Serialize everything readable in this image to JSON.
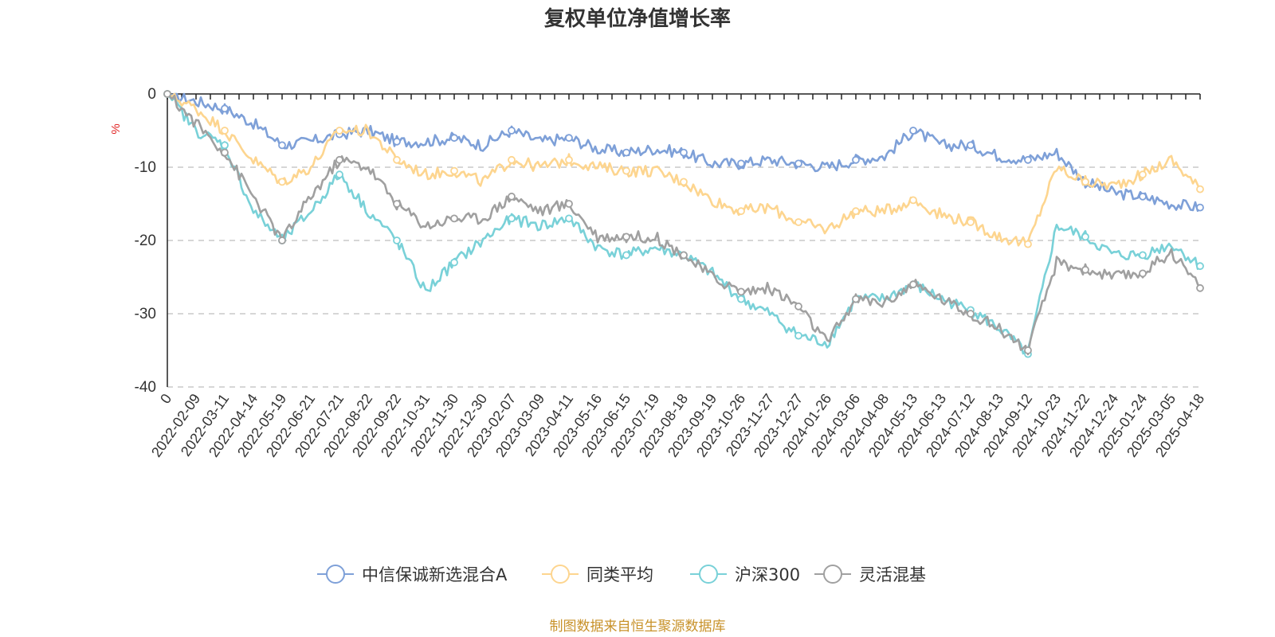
{
  "chart_data": {
    "type": "line",
    "title": "复权单位净值增长率",
    "ylabel": "%",
    "xlabel": "",
    "ylim": [
      -40,
      0
    ],
    "yticks": [
      0,
      -10,
      -20,
      -30,
      -40
    ],
    "grid": true,
    "legend_position": "bottom-center",
    "categories": [
      "0",
      "2022-02-09",
      "2022-03-11",
      "2022-04-14",
      "2022-05-19",
      "2022-06-21",
      "2022-07-21",
      "2022-08-22",
      "2022-09-22",
      "2022-10-31",
      "2022-11-30",
      "2022-12-30",
      "2023-02-07",
      "2023-03-09",
      "2023-04-11",
      "2023-05-16",
      "2023-06-15",
      "2023-07-19",
      "2023-08-18",
      "2023-09-19",
      "2023-10-26",
      "2023-11-27",
      "2023-12-27",
      "2024-01-26",
      "2024-03-06",
      "2024-04-08",
      "2024-05-13",
      "2024-06-13",
      "2024-07-12",
      "2024-08-13",
      "2024-09-12",
      "2024-10-23",
      "2024-11-22",
      "2024-12-24",
      "2025-01-24",
      "2025-03-05",
      "2025-04-18"
    ],
    "series": [
      {
        "name": "中信保诚新选混合A",
        "color": "#7ea0d8",
        "values": [
          0,
          -1,
          -2,
          -4,
          -7,
          -6.5,
          -5.5,
          -5,
          -6.5,
          -6.5,
          -6,
          -7,
          -5,
          -6.5,
          -6,
          -7.5,
          -8,
          -7.5,
          -8,
          -9.5,
          -9.5,
          -9,
          -9.5,
          -10,
          -9,
          -8.5,
          -5,
          -7,
          -7,
          -8.5,
          -9,
          -8,
          -12,
          -13.5,
          -14,
          -15,
          -15.5
        ]
      },
      {
        "name": "同类平均",
        "color": "#fdd58f",
        "values": [
          0,
          -2,
          -5,
          -9,
          -12,
          -10,
          -5,
          -5,
          -9,
          -11,
          -10.5,
          -12,
          -9,
          -10,
          -9,
          -10,
          -10.5,
          -10.5,
          -12,
          -14.5,
          -16,
          -15.5,
          -17.5,
          -18.5,
          -16,
          -16,
          -14.5,
          -16.5,
          -17.5,
          -19.5,
          -20.5,
          -10,
          -12,
          -12.5,
          -11,
          -9,
          -13
        ]
      },
      {
        "name": "沪深300",
        "color": "#79d1d8",
        "values": [
          0,
          -5,
          -7,
          -16,
          -20,
          -16,
          -11,
          -16,
          -20,
          -27,
          -23,
          -20,
          -17,
          -18,
          -17,
          -21,
          -22,
          -21,
          -22,
          -24.5,
          -28,
          -30,
          -33,
          -34,
          -28,
          -28,
          -26,
          -28,
          -29.5,
          -32,
          -35.5,
          -18,
          -19.5,
          -22,
          -22,
          -20.5,
          -23.5
        ]
      },
      {
        "name": "灵活混基",
        "color": "#a0a0a0",
        "values": [
          0,
          -4,
          -8,
          -14,
          -20,
          -14,
          -9,
          -10,
          -15,
          -18,
          -17,
          -17,
          -14,
          -16,
          -15,
          -19.5,
          -19.5,
          -19.5,
          -22,
          -25,
          -27,
          -26.5,
          -29,
          -34,
          -28,
          -28.5,
          -26,
          -28,
          -30,
          -32,
          -35,
          -23,
          -24,
          -25,
          -24.5,
          -21.5,
          -26.5
        ]
      }
    ],
    "source": "制图数据来自恒生聚源数据库"
  }
}
